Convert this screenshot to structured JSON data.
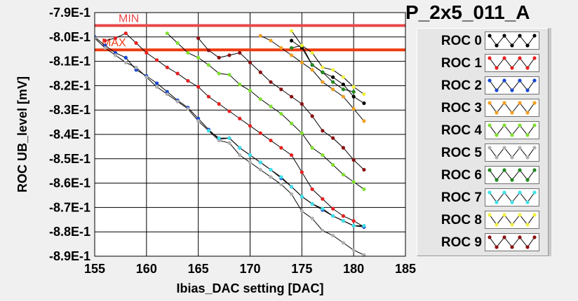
{
  "chart_data": {
    "type": "line",
    "title": "P_2x5_011_A",
    "xlabel": "Ibias_DAC setting [DAC]",
    "ylabel": "ROC UB_level [mV]",
    "xlim": [
      155,
      185
    ],
    "ylim": [
      -0.89,
      -0.79
    ],
    "x_ticks": [
      155,
      160,
      165,
      170,
      175,
      180,
      185
    ],
    "x_tick_labels": [
      "155",
      "160",
      "165",
      "170",
      "175",
      "180",
      "185"
    ],
    "y_ticks": [
      -0.79,
      -0.8,
      -0.81,
      -0.82,
      -0.83,
      -0.84,
      -0.85,
      -0.86,
      -0.87,
      -0.88,
      -0.89
    ],
    "y_tick_labels": [
      "-7.9E-1",
      "-8.0E-1",
      "-8.1E-1",
      "-8.2E-1",
      "-8.3E-1",
      "-8.4E-1",
      "-8.5E-1",
      "-8.6E-1",
      "-8.7E-1",
      "-8.8E-1",
      "-8.9E-1"
    ],
    "grid": true,
    "thresholds": [
      {
        "label": "MIN",
        "y": -0.7953,
        "color": "#e84848"
      },
      {
        "label": "MAX",
        "y": -0.8053,
        "color": "#ee3a10"
      }
    ],
    "series": [
      {
        "name": "ROC 0",
        "color": "#000000",
        "x": [
          174,
          175,
          176,
          177,
          178,
          179,
          180,
          181
        ],
        "y": [
          -0.8015,
          -0.8045,
          -0.8115,
          -0.8145,
          -0.8165,
          -0.8195,
          -0.8245,
          -0.8272
        ]
      },
      {
        "name": "ROC 1",
        "color": "#e82020",
        "x": [
          156,
          157,
          158,
          159,
          160,
          161,
          162,
          163,
          164,
          165,
          166,
          167,
          168,
          169,
          170,
          171,
          172,
          173,
          174,
          175,
          176,
          177,
          178,
          179,
          180,
          181
        ],
        "y": [
          -0.8015,
          -0.8005,
          -0.7985,
          -0.8025,
          -0.8065,
          -0.8095,
          -0.8125,
          -0.815,
          -0.818,
          -0.8205,
          -0.8245,
          -0.8275,
          -0.8305,
          -0.8335,
          -0.8365,
          -0.8395,
          -0.8425,
          -0.8455,
          -0.8485,
          -0.8555,
          -0.8625,
          -0.8665,
          -0.8705,
          -0.8735,
          -0.8755,
          -0.878
        ]
      },
      {
        "name": "ROC 2",
        "color": "#1848d0",
        "x": [
          155,
          156,
          157,
          158,
          159,
          160,
          161,
          162,
          163,
          164,
          165,
          166,
          167,
          168,
          169,
          170,
          171,
          172,
          173,
          174,
          175,
          176,
          177,
          178,
          179,
          180,
          181
        ],
        "y": [
          -0.8,
          -0.8035,
          -0.8065,
          -0.8085,
          -0.8135,
          -0.816,
          -0.819,
          -0.8225,
          -0.826,
          -0.829,
          -0.8335,
          -0.838,
          -0.842,
          -0.8415,
          -0.8455,
          -0.8485,
          -0.8515,
          -0.8545,
          -0.858,
          -0.8615,
          -0.8655,
          -0.8685,
          -0.871,
          -0.8735,
          -0.8755,
          -0.8775,
          -0.878
        ]
      },
      {
        "name": "ROC 3",
        "color": "#f0a020",
        "x": [
          171,
          172,
          173,
          174,
          175,
          176,
          177,
          178,
          179,
          180,
          181
        ],
        "y": [
          -0.7995,
          -0.8015,
          -0.8045,
          -0.8075,
          -0.8105,
          -0.8135,
          -0.8185,
          -0.8215,
          -0.8245,
          -0.8295,
          -0.8345
        ]
      },
      {
        "name": "ROC 4",
        "color": "#80e030",
        "x": [
          162,
          163,
          164,
          165,
          166,
          167,
          168,
          169,
          170,
          171,
          172,
          173,
          174,
          175,
          176,
          177,
          178,
          179,
          180,
          181
        ],
        "y": [
          -0.7985,
          -0.8025,
          -0.8065,
          -0.8085,
          -0.8115,
          -0.815,
          -0.8155,
          -0.8195,
          -0.822,
          -0.8255,
          -0.8285,
          -0.8315,
          -0.8355,
          -0.8395,
          -0.8455,
          -0.8485,
          -0.8525,
          -0.8565,
          -0.8595,
          -0.8625
        ]
      },
      {
        "name": "ROC 5",
        "color": "#b0b0b0",
        "x": [
          155,
          156,
          157,
          158,
          159,
          160,
          161,
          162,
          163,
          164,
          165,
          166,
          167,
          168,
          169,
          170,
          171,
          172,
          173,
          174,
          175,
          176,
          177,
          178,
          179,
          180,
          181
        ],
        "y": [
          -0.8005,
          -0.8045,
          -0.8075,
          -0.8105,
          -0.8125,
          -0.8165,
          -0.8205,
          -0.8235,
          -0.8265,
          -0.8295,
          -0.8345,
          -0.8385,
          -0.8425,
          -0.8435,
          -0.8485,
          -0.8515,
          -0.8545,
          -0.8575,
          -0.8605,
          -0.8645,
          -0.8715,
          -0.8745,
          -0.8795,
          -0.8815,
          -0.8845,
          -0.8875,
          -0.8895
        ]
      },
      {
        "name": "ROC 6",
        "color": "#208a20",
        "x": [
          174,
          175,
          176,
          177,
          178,
          179,
          180
        ],
        "y": [
          -0.8045,
          -0.8035,
          -0.8115,
          -0.8145,
          -0.8185,
          -0.8215,
          -0.8225
        ]
      },
      {
        "name": "ROC 7",
        "color": "#40e0e8",
        "x": [
          166,
          167,
          168,
          169,
          170,
          171,
          172,
          173,
          174,
          175,
          176,
          177,
          178,
          179,
          180,
          181
        ],
        "y": [
          -0.8385,
          -0.8415,
          -0.8415,
          -0.8455,
          -0.8485,
          -0.8515,
          -0.8545,
          -0.8575,
          -0.8615,
          -0.8655,
          -0.8685,
          -0.8705,
          -0.8735,
          -0.8755,
          -0.8775,
          -0.8775
        ]
      },
      {
        "name": "ROC 8",
        "color": "#f0f040",
        "x": [
          174,
          175,
          176,
          177,
          178,
          179,
          180,
          181
        ],
        "y": [
          -0.7975,
          -0.8035,
          -0.8065,
          -0.8125,
          -0.8135,
          -0.8165,
          -0.8205,
          -0.8235
        ]
      },
      {
        "name": "ROC 9",
        "color": "#8b1010",
        "x": [
          165,
          166,
          167,
          168,
          169,
          170,
          171,
          172,
          173,
          174,
          175,
          176,
          177,
          178,
          179,
          180,
          181
        ],
        "y": [
          -0.8005,
          -0.8055,
          -0.8085,
          -0.8075,
          -0.8065,
          -0.8105,
          -0.8145,
          -0.8185,
          -0.8215,
          -0.8245,
          -0.8275,
          -0.8325,
          -0.8385,
          -0.8415,
          -0.8455,
          -0.8505,
          -0.8545
        ]
      }
    ]
  }
}
